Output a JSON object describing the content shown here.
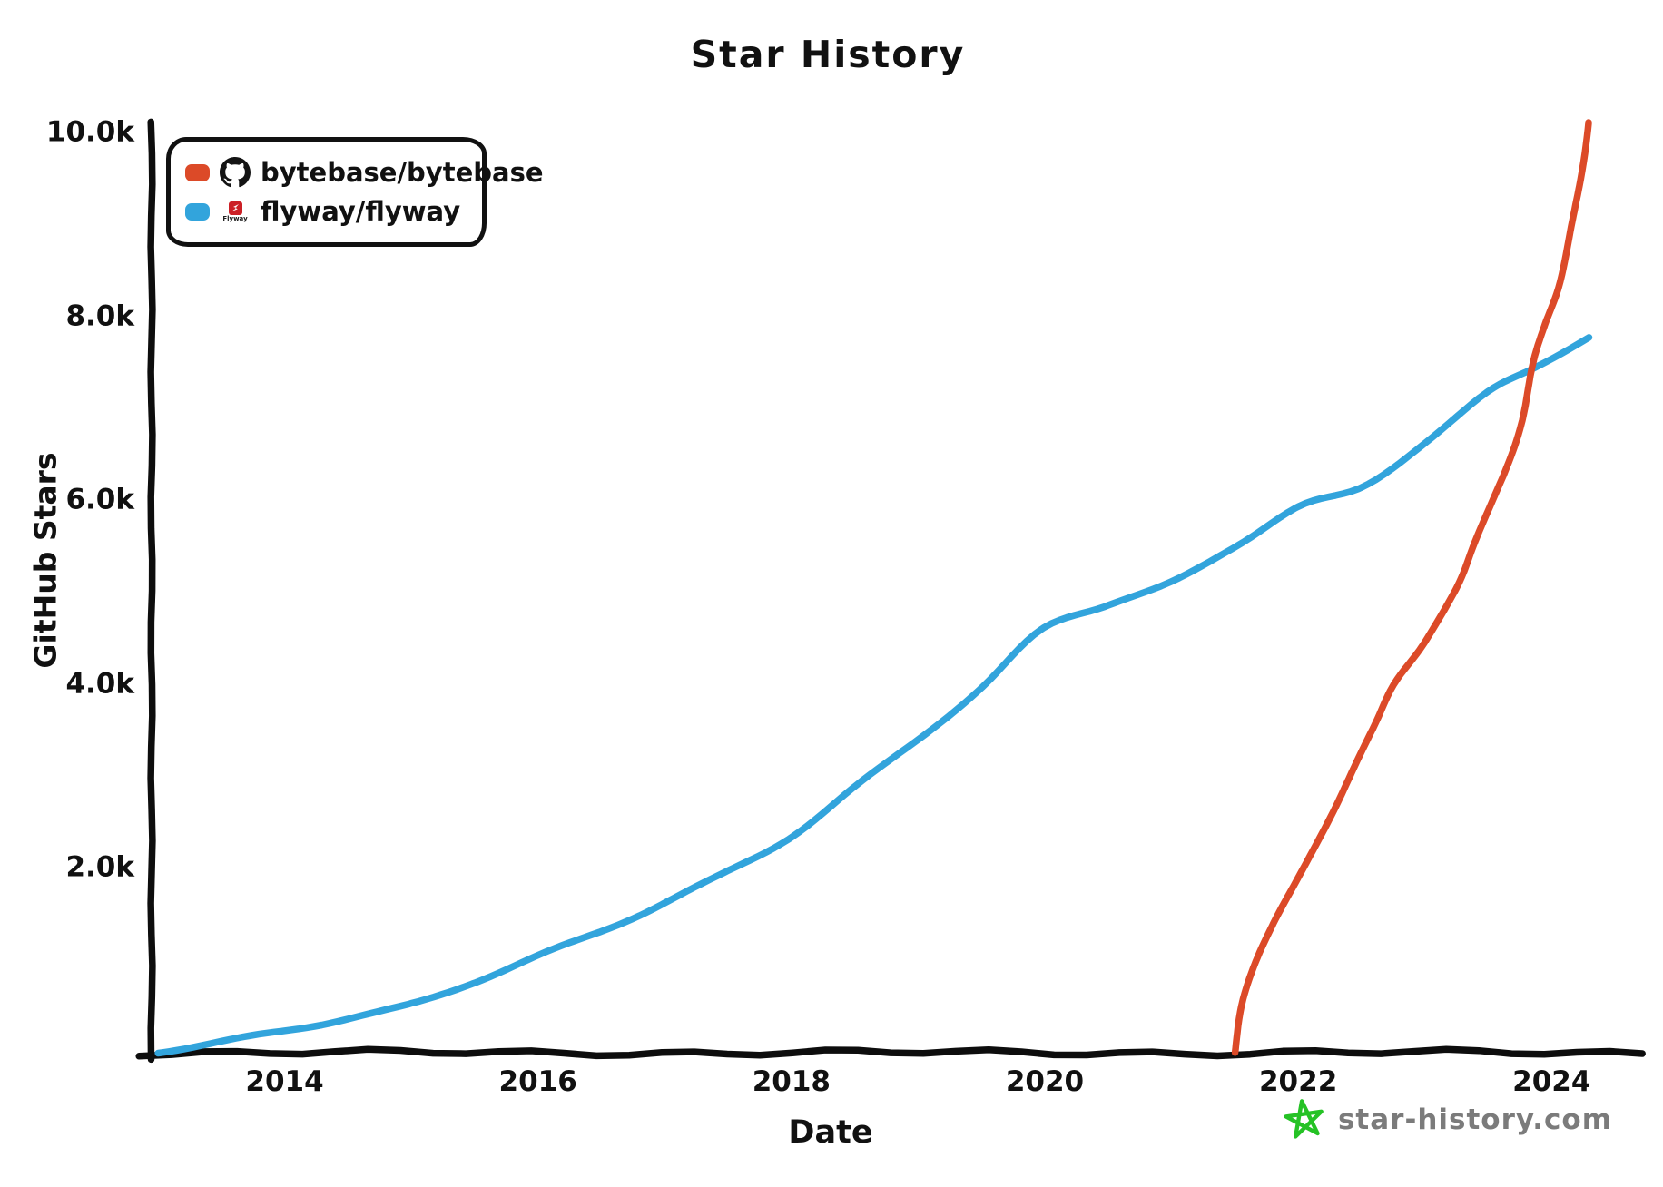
{
  "title": "Star History",
  "legend": {
    "items": [
      {
        "label": "bytebase/bytebase",
        "color": "#DC4A28",
        "icon": "github-octocat"
      },
      {
        "label": "flyway/flyway",
        "color": "#32A4DC",
        "icon": "flyway-logo"
      }
    ]
  },
  "watermark": {
    "text": "star-history.com",
    "star_color": "#25C225",
    "text_color": "#7B7B7B"
  },
  "chart_data": {
    "type": "line",
    "title": "Star History",
    "xlabel": "Date",
    "ylabel": "GitHub Stars",
    "x_unit": "year",
    "y_unit": "stars",
    "x_ticks": [
      2014,
      2016,
      2018,
      2020,
      2022,
      2024
    ],
    "y_ticks": [
      {
        "label": "2.0k",
        "value": 2000
      },
      {
        "label": "4.0k",
        "value": 4000
      },
      {
        "label": "6.0k",
        "value": 6000
      },
      {
        "label": "8.0k",
        "value": 8000
      },
      {
        "label": "10.0k",
        "value": 10000
      }
    ],
    "xlim": [
      2012.95,
      2024.65
    ],
    "ylim": [
      0,
      10300
    ],
    "grid": false,
    "legend_position": "top-left",
    "style": "hand-drawn-xkcd",
    "series": [
      {
        "name": "flyway/flyway",
        "color": "#32A4DC",
        "points": [
          [
            2013.0,
            0
          ],
          [
            2013.5,
            110
          ],
          [
            2014.0,
            240
          ],
          [
            2014.5,
            380
          ],
          [
            2015.0,
            530
          ],
          [
            2015.5,
            780
          ],
          [
            2016.0,
            1050
          ],
          [
            2016.5,
            1320
          ],
          [
            2017.0,
            1620
          ],
          [
            2017.5,
            1960
          ],
          [
            2018.0,
            2360
          ],
          [
            2018.5,
            2890
          ],
          [
            2019.0,
            3420
          ],
          [
            2019.5,
            3980
          ],
          [
            2020.0,
            4620
          ],
          [
            2020.5,
            4870
          ],
          [
            2021.0,
            5100
          ],
          [
            2021.5,
            5510
          ],
          [
            2022.0,
            5930
          ],
          [
            2022.5,
            6150
          ],
          [
            2023.0,
            6650
          ],
          [
            2023.5,
            7190
          ],
          [
            2023.85,
            7450
          ],
          [
            2024.3,
            7780
          ]
        ]
      },
      {
        "name": "bytebase/bytebase",
        "color": "#DC4A28",
        "points": [
          [
            2021.5,
            0
          ],
          [
            2021.56,
            520
          ],
          [
            2021.66,
            980
          ],
          [
            2021.8,
            1400
          ],
          [
            2022.0,
            1900
          ],
          [
            2022.2,
            2450
          ],
          [
            2022.4,
            3000
          ],
          [
            2022.6,
            3550
          ],
          [
            2022.75,
            4000
          ],
          [
            2023.0,
            4450
          ],
          [
            2023.25,
            5050
          ],
          [
            2023.4,
            5600
          ],
          [
            2023.63,
            6300
          ],
          [
            2023.75,
            6800
          ],
          [
            2023.85,
            7450
          ],
          [
            2023.95,
            7900
          ],
          [
            2024.05,
            8300
          ],
          [
            2024.15,
            8900
          ],
          [
            2024.22,
            9400
          ],
          [
            2024.29,
            10100
          ]
        ]
      }
    ]
  }
}
